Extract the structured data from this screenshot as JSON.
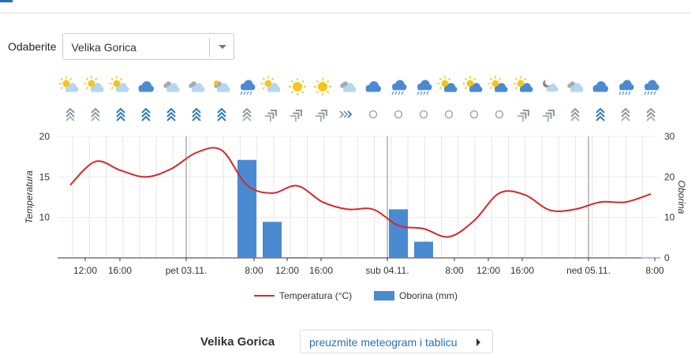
{
  "selector": {
    "label": "Odaberite",
    "value": "Velika Gorica"
  },
  "chart_data": {
    "type": "line",
    "x_tick_labels": [
      "12:00",
      "16:00",
      "pet 03.11.",
      "8:00",
      "12:00",
      "16:00",
      "sub 04.11.",
      "8:00",
      "12:00",
      "16:00",
      "ned 05.11.",
      "8:00"
    ],
    "y_left": {
      "label": "Temperatura",
      "range": [
        5,
        20
      ],
      "ticks": [
        10,
        15,
        20
      ]
    },
    "y_right": {
      "label": "Oborina",
      "range": [
        0,
        30
      ],
      "ticks": [
        0,
        10,
        20,
        30
      ]
    },
    "series": [
      {
        "name": "Temperatura (°C)",
        "color": "#d62728",
        "x": [
          0,
          1,
          2,
          3,
          4,
          5,
          6,
          7,
          8,
          9,
          10,
          11,
          12,
          13,
          14,
          15,
          16,
          17,
          18,
          19,
          20,
          21,
          22,
          23
        ],
        "values": [
          14.0,
          16.9,
          15.8,
          15.0,
          16.0,
          18.0,
          18.3,
          14.0,
          13.0,
          13.9,
          11.9,
          11.0,
          11.0,
          9.0,
          8.6,
          7.6,
          9.6,
          13.0,
          12.8,
          10.9,
          11.0,
          11.9,
          11.9,
          12.9
        ]
      },
      {
        "name": "Oborina (mm)",
        "color": "#4a8ad1",
        "x": [
          7,
          8,
          9,
          13,
          14,
          23
        ],
        "values": [
          24.2,
          8.9,
          0.2,
          12.0,
          4.0,
          0.1
        ]
      }
    ],
    "weather_icons": [
      "sun-cloud-rain",
      "sun-cloud-rain",
      "sun-cloud-rain",
      "cloud",
      "cloud-rain",
      "cloud-rain",
      "cloud-sun",
      "storm-rain",
      "sun-cloud-rain",
      "sun",
      "sun",
      "cloud-rain",
      "cloud",
      "storm-rain",
      "storm-rain",
      "sun-cloud",
      "sun-cloud",
      "sun-cloud",
      "sun-cloud",
      "moon-cloud",
      "cloud-rain",
      "cloud",
      "storm-rain",
      "storm-rain"
    ],
    "wind_icons": [
      "N",
      "N",
      "N",
      "N",
      "N",
      "N",
      "N",
      "N",
      "NE",
      "NE",
      "NE",
      "E",
      "calm",
      "calm",
      "calm",
      "calm",
      "calm",
      "calm",
      "NE",
      "NE",
      "N",
      "N",
      "N",
      "N"
    ],
    "wind_strong": [
      false,
      false,
      true,
      true,
      true,
      true,
      true,
      false,
      false,
      false,
      false,
      false,
      false,
      false,
      false,
      false,
      false,
      false,
      false,
      false,
      false,
      true,
      false,
      false
    ],
    "colors": {
      "grid": "#e6e6e6",
      "day_line": "#888888",
      "wind": "#8a98a4",
      "wind_strong": "#2b7ab8",
      "cloud": "#4a8ad1",
      "cloud_light": "#b5d6ee",
      "sun": "#f5c518"
    },
    "legend": {
      "position": "bottom-center"
    }
  },
  "bottom": {
    "station": "Velika Gorica",
    "download_label": "preuzmite meteogram i tablicu"
  }
}
